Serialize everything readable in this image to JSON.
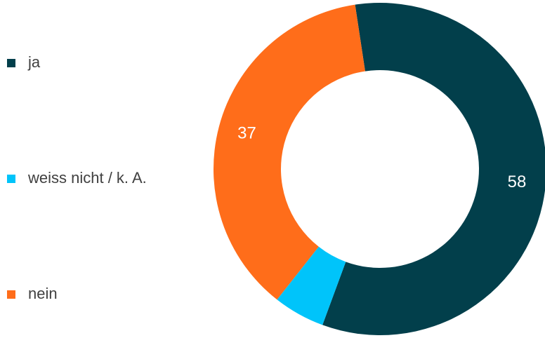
{
  "chart_data": {
    "type": "donut",
    "categories": [
      "ja",
      "weiss nicht / k. A.",
      "nein"
    ],
    "values": [
      58,
      5,
      37
    ],
    "value_labels": [
      "58",
      null,
      "37"
    ],
    "colors": [
      "#023f4b",
      "#00c4fa",
      "#ff6d1a"
    ],
    "legend": "left"
  }
}
